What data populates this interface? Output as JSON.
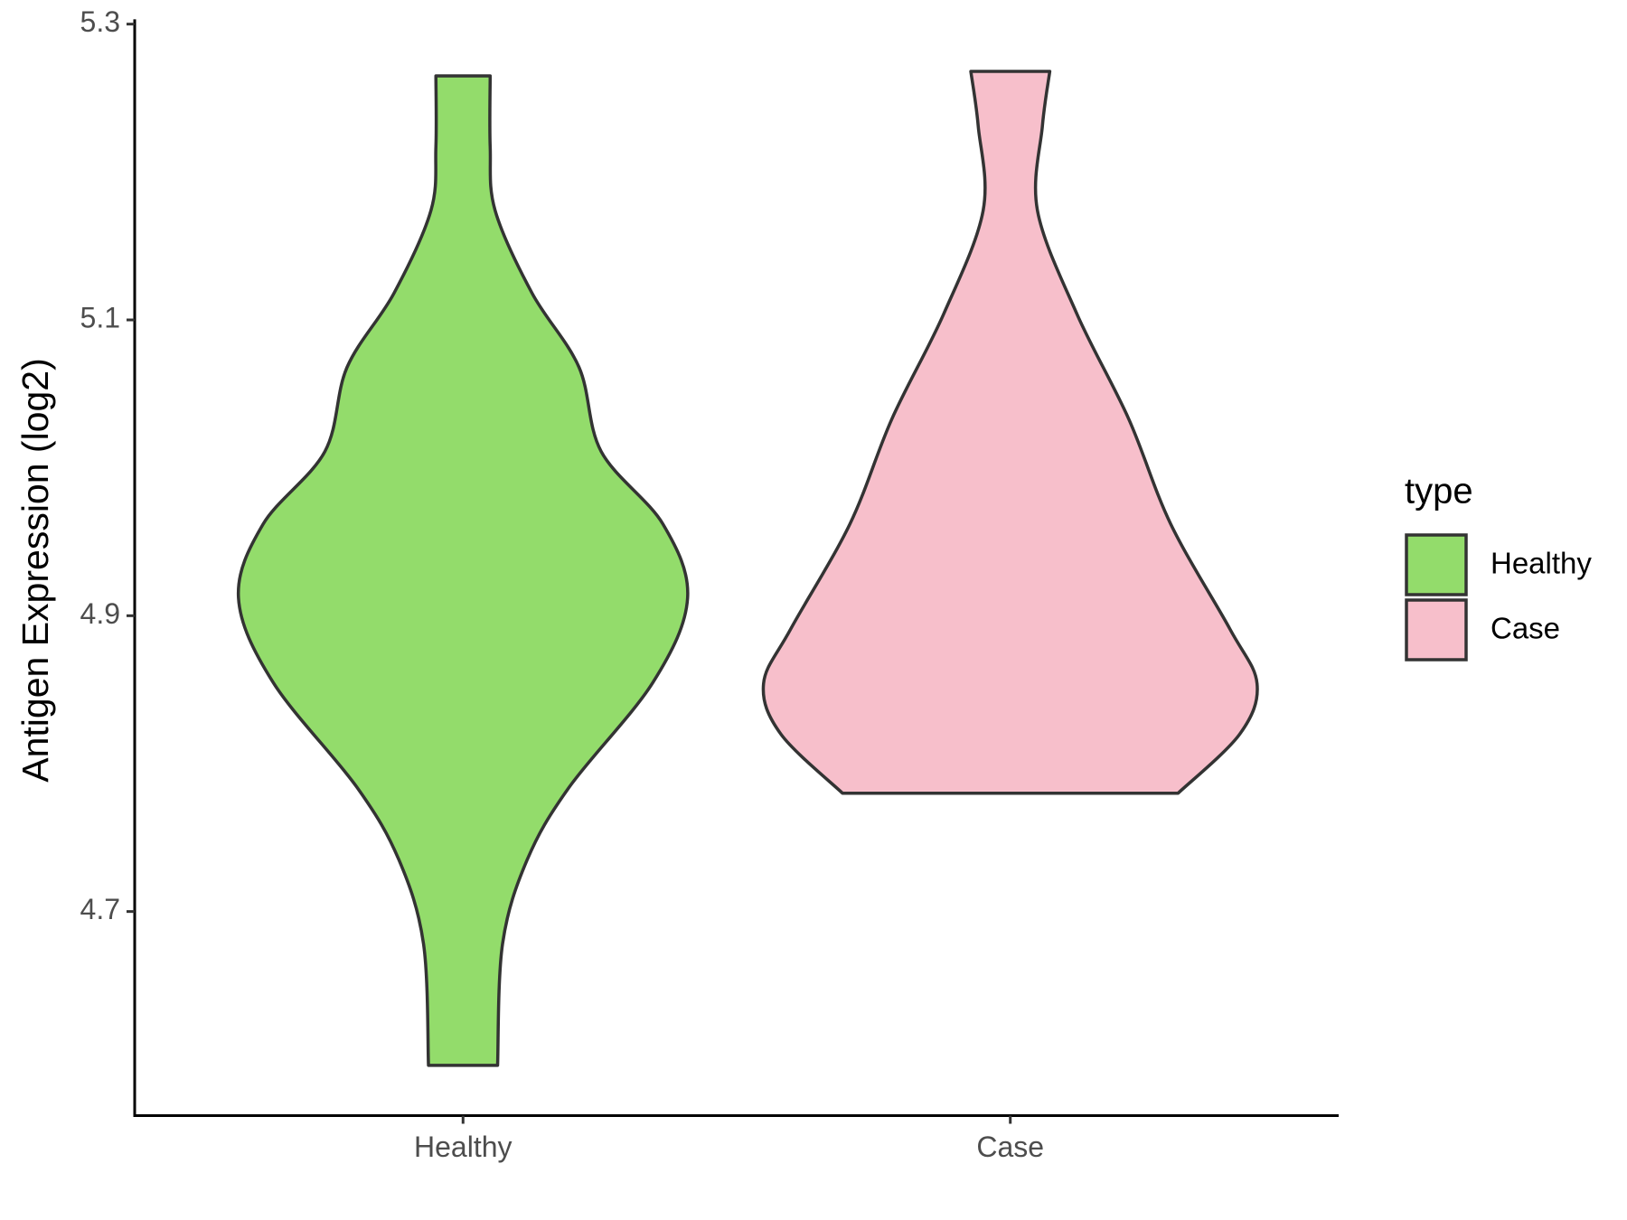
{
  "chart_data": {
    "type": "violin",
    "y_label": "Antigen Expression (log2)",
    "categories": [
      "Healthy",
      "Case"
    ],
    "legend_title": "type",
    "series": [
      {
        "name": "Healthy",
        "color": "#93dc6b",
        "y": [
          4.596,
          4.678,
          4.735,
          4.784,
          4.855,
          4.912,
          4.962,
          5.011,
          5.068,
          5.118,
          5.174,
          5.217,
          5.265
        ],
        "density": [
          0.14,
          0.16,
          0.26,
          0.43,
          0.77,
          0.91,
          0.81,
          0.56,
          0.47,
          0.28,
          0.13,
          0.11,
          0.11
        ]
      },
      {
        "name": "Case",
        "color": "#f7bfcb",
        "y": [
          4.78,
          4.82,
          4.854,
          4.891,
          4.962,
          5.033,
          5.104,
          5.174,
          5.231,
          5.268
        ],
        "density": [
          0.68,
          0.93,
          1.0,
          0.89,
          0.65,
          0.48,
          0.27,
          0.11,
          0.13,
          0.16
        ]
      }
    ],
    "ylim": [
      4.562,
      5.302
    ],
    "yticks": [
      4.7,
      4.9,
      5.1,
      5.3
    ]
  }
}
